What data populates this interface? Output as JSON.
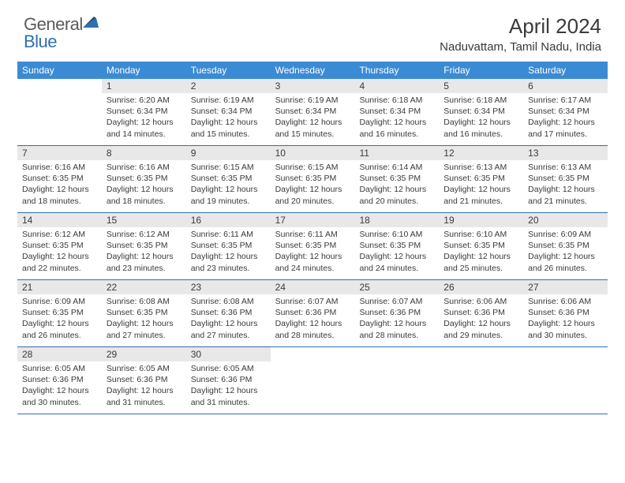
{
  "logo": {
    "general": "General",
    "blue": "Blue"
  },
  "title": "April 2024",
  "location": "Naduvattam, Tamil Nadu, India",
  "colors": {
    "header_bg": "#3b8bd4",
    "border": "#2f6fb0",
    "daynum_bg": "#e8e8e8",
    "text": "#3a3a3a",
    "logo_gray": "#5a5a5a",
    "logo_blue": "#2f6fb0"
  },
  "day_names": [
    "Sunday",
    "Monday",
    "Tuesday",
    "Wednesday",
    "Thursday",
    "Friday",
    "Saturday"
  ],
  "weeks": [
    [
      {
        "n": "",
        "sr": "",
        "ss": "",
        "dl": ""
      },
      {
        "n": "1",
        "sr": "Sunrise: 6:20 AM",
        "ss": "Sunset: 6:34 PM",
        "dl": "Daylight: 12 hours and 14 minutes."
      },
      {
        "n": "2",
        "sr": "Sunrise: 6:19 AM",
        "ss": "Sunset: 6:34 PM",
        "dl": "Daylight: 12 hours and 15 minutes."
      },
      {
        "n": "3",
        "sr": "Sunrise: 6:19 AM",
        "ss": "Sunset: 6:34 PM",
        "dl": "Daylight: 12 hours and 15 minutes."
      },
      {
        "n": "4",
        "sr": "Sunrise: 6:18 AM",
        "ss": "Sunset: 6:34 PM",
        "dl": "Daylight: 12 hours and 16 minutes."
      },
      {
        "n": "5",
        "sr": "Sunrise: 6:18 AM",
        "ss": "Sunset: 6:34 PM",
        "dl": "Daylight: 12 hours and 16 minutes."
      },
      {
        "n": "6",
        "sr": "Sunrise: 6:17 AM",
        "ss": "Sunset: 6:34 PM",
        "dl": "Daylight: 12 hours and 17 minutes."
      }
    ],
    [
      {
        "n": "7",
        "sr": "Sunrise: 6:16 AM",
        "ss": "Sunset: 6:35 PM",
        "dl": "Daylight: 12 hours and 18 minutes."
      },
      {
        "n": "8",
        "sr": "Sunrise: 6:16 AM",
        "ss": "Sunset: 6:35 PM",
        "dl": "Daylight: 12 hours and 18 minutes."
      },
      {
        "n": "9",
        "sr": "Sunrise: 6:15 AM",
        "ss": "Sunset: 6:35 PM",
        "dl": "Daylight: 12 hours and 19 minutes."
      },
      {
        "n": "10",
        "sr": "Sunrise: 6:15 AM",
        "ss": "Sunset: 6:35 PM",
        "dl": "Daylight: 12 hours and 20 minutes."
      },
      {
        "n": "11",
        "sr": "Sunrise: 6:14 AM",
        "ss": "Sunset: 6:35 PM",
        "dl": "Daylight: 12 hours and 20 minutes."
      },
      {
        "n": "12",
        "sr": "Sunrise: 6:13 AM",
        "ss": "Sunset: 6:35 PM",
        "dl": "Daylight: 12 hours and 21 minutes."
      },
      {
        "n": "13",
        "sr": "Sunrise: 6:13 AM",
        "ss": "Sunset: 6:35 PM",
        "dl": "Daylight: 12 hours and 21 minutes."
      }
    ],
    [
      {
        "n": "14",
        "sr": "Sunrise: 6:12 AM",
        "ss": "Sunset: 6:35 PM",
        "dl": "Daylight: 12 hours and 22 minutes."
      },
      {
        "n": "15",
        "sr": "Sunrise: 6:12 AM",
        "ss": "Sunset: 6:35 PM",
        "dl": "Daylight: 12 hours and 23 minutes."
      },
      {
        "n": "16",
        "sr": "Sunrise: 6:11 AM",
        "ss": "Sunset: 6:35 PM",
        "dl": "Daylight: 12 hours and 23 minutes."
      },
      {
        "n": "17",
        "sr": "Sunrise: 6:11 AM",
        "ss": "Sunset: 6:35 PM",
        "dl": "Daylight: 12 hours and 24 minutes."
      },
      {
        "n": "18",
        "sr": "Sunrise: 6:10 AM",
        "ss": "Sunset: 6:35 PM",
        "dl": "Daylight: 12 hours and 24 minutes."
      },
      {
        "n": "19",
        "sr": "Sunrise: 6:10 AM",
        "ss": "Sunset: 6:35 PM",
        "dl": "Daylight: 12 hours and 25 minutes."
      },
      {
        "n": "20",
        "sr": "Sunrise: 6:09 AM",
        "ss": "Sunset: 6:35 PM",
        "dl": "Daylight: 12 hours and 26 minutes."
      }
    ],
    [
      {
        "n": "21",
        "sr": "Sunrise: 6:09 AM",
        "ss": "Sunset: 6:35 PM",
        "dl": "Daylight: 12 hours and 26 minutes."
      },
      {
        "n": "22",
        "sr": "Sunrise: 6:08 AM",
        "ss": "Sunset: 6:35 PM",
        "dl": "Daylight: 12 hours and 27 minutes."
      },
      {
        "n": "23",
        "sr": "Sunrise: 6:08 AM",
        "ss": "Sunset: 6:36 PM",
        "dl": "Daylight: 12 hours and 27 minutes."
      },
      {
        "n": "24",
        "sr": "Sunrise: 6:07 AM",
        "ss": "Sunset: 6:36 PM",
        "dl": "Daylight: 12 hours and 28 minutes."
      },
      {
        "n": "25",
        "sr": "Sunrise: 6:07 AM",
        "ss": "Sunset: 6:36 PM",
        "dl": "Daylight: 12 hours and 28 minutes."
      },
      {
        "n": "26",
        "sr": "Sunrise: 6:06 AM",
        "ss": "Sunset: 6:36 PM",
        "dl": "Daylight: 12 hours and 29 minutes."
      },
      {
        "n": "27",
        "sr": "Sunrise: 6:06 AM",
        "ss": "Sunset: 6:36 PM",
        "dl": "Daylight: 12 hours and 30 minutes."
      }
    ],
    [
      {
        "n": "28",
        "sr": "Sunrise: 6:05 AM",
        "ss": "Sunset: 6:36 PM",
        "dl": "Daylight: 12 hours and 30 minutes."
      },
      {
        "n": "29",
        "sr": "Sunrise: 6:05 AM",
        "ss": "Sunset: 6:36 PM",
        "dl": "Daylight: 12 hours and 31 minutes."
      },
      {
        "n": "30",
        "sr": "Sunrise: 6:05 AM",
        "ss": "Sunset: 6:36 PM",
        "dl": "Daylight: 12 hours and 31 minutes."
      },
      {
        "n": "",
        "sr": "",
        "ss": "",
        "dl": ""
      },
      {
        "n": "",
        "sr": "",
        "ss": "",
        "dl": ""
      },
      {
        "n": "",
        "sr": "",
        "ss": "",
        "dl": ""
      },
      {
        "n": "",
        "sr": "",
        "ss": "",
        "dl": ""
      }
    ]
  ]
}
